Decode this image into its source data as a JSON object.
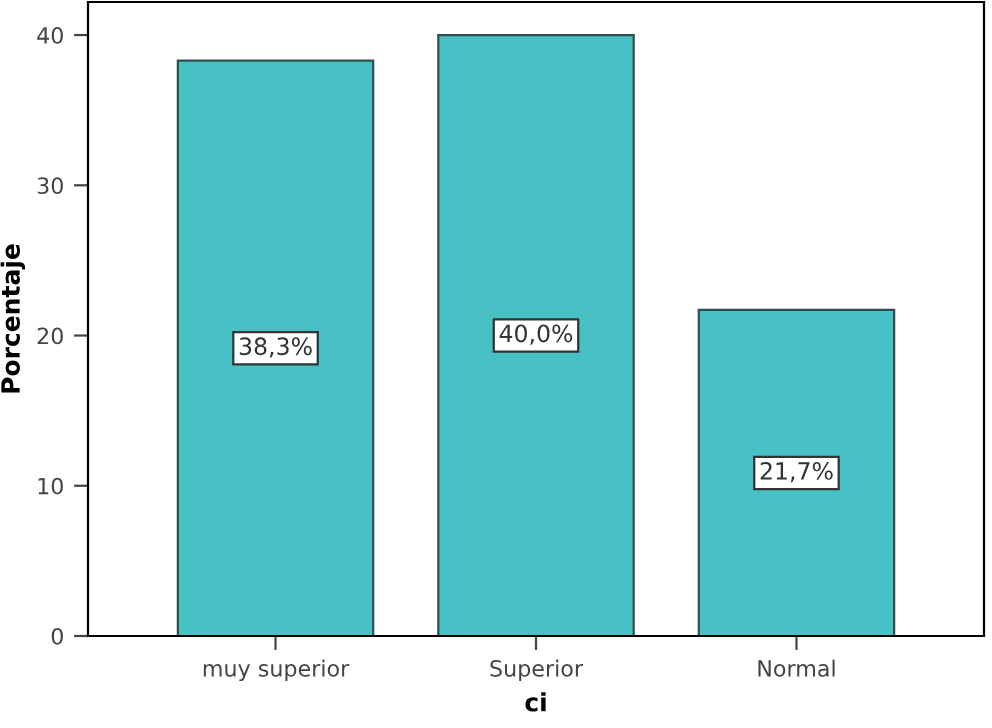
{
  "chart_data": {
    "type": "bar",
    "xlabel": "ci",
    "ylabel": "Porcentaje",
    "categories": [
      "muy superior",
      "Superior",
      "Normal"
    ],
    "values": [
      38.3,
      40.0,
      21.7
    ],
    "value_labels": [
      "38,3%",
      "40,0%",
      "21,7%"
    ],
    "color": "#48c1c4",
    "ylim": [
      0,
      42.2
    ],
    "yticks": [
      0,
      10,
      20,
      30,
      40
    ],
    "grid": false
  }
}
